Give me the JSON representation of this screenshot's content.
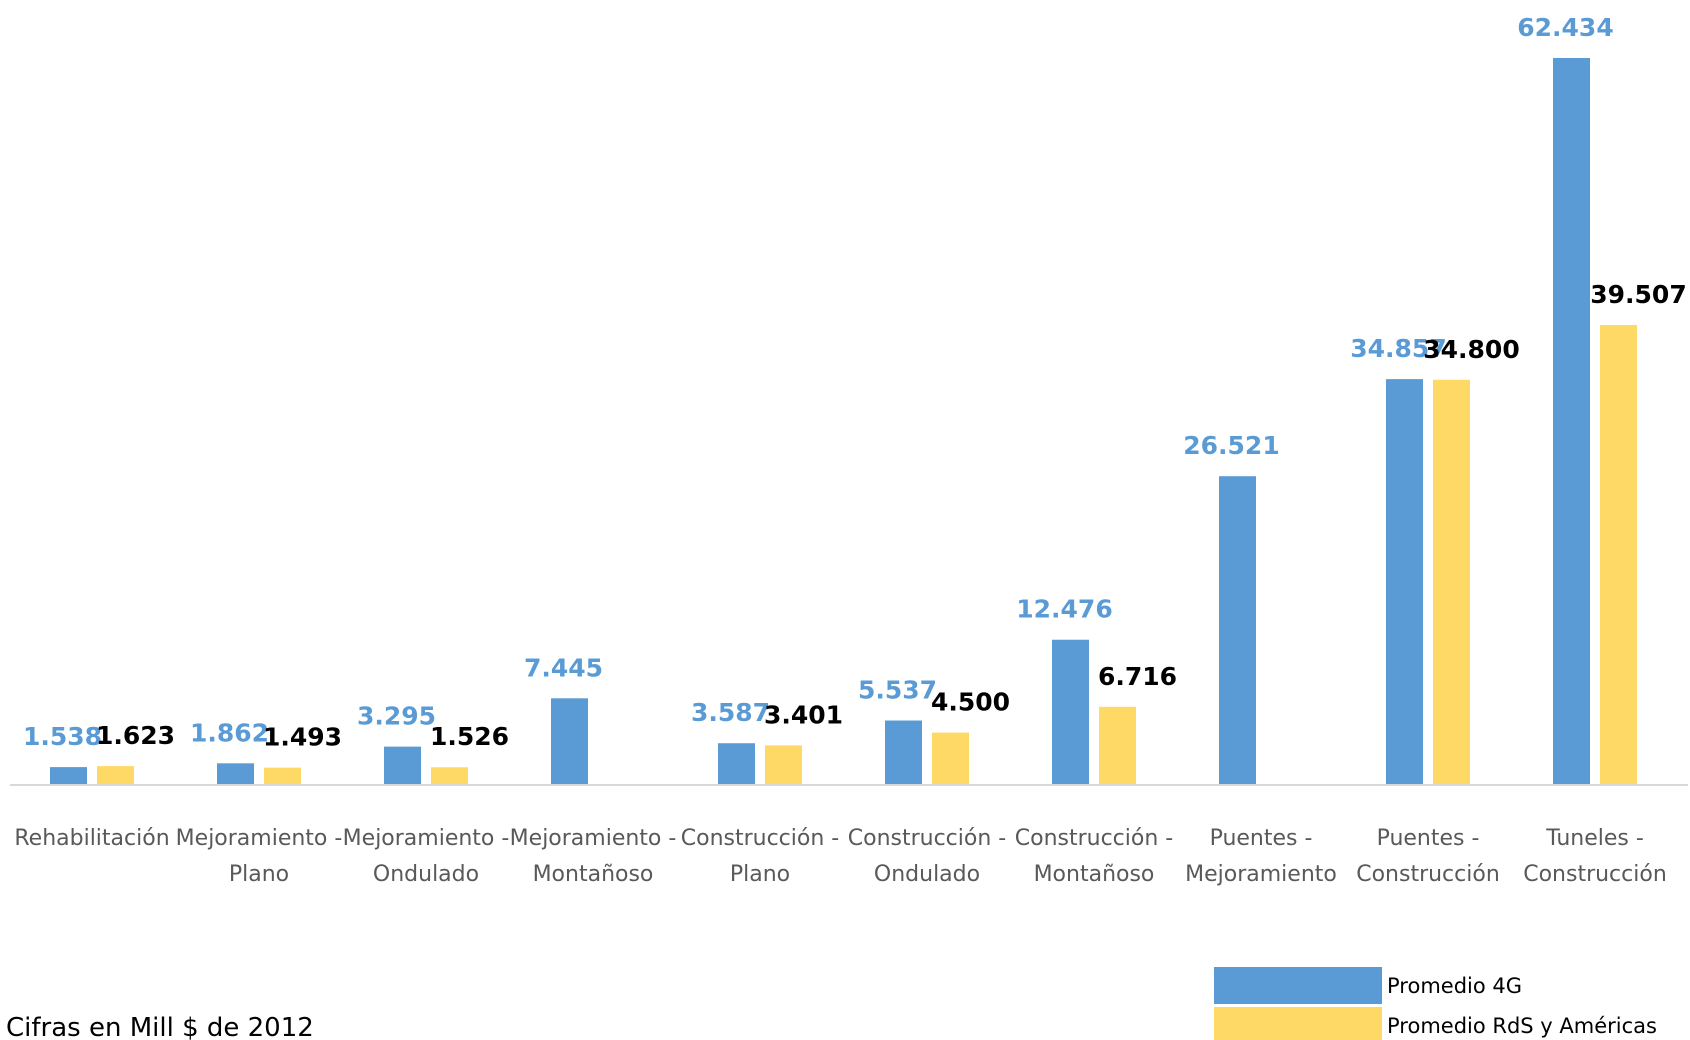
{
  "chart_data": {
    "type": "bar",
    "categories": [
      [
        "Rehabilitación"
      ],
      [
        "Mejoramiento -",
        "Plano"
      ],
      [
        "Mejoramiento -",
        "Ondulado"
      ],
      [
        "Mejoramiento -",
        "Montañoso"
      ],
      [
        "Construcción -",
        "Plano"
      ],
      [
        "Construcción -",
        "Ondulado"
      ],
      [
        "Construcción -",
        "Montañoso"
      ],
      [
        "Puentes -",
        "Mejoramiento"
      ],
      [
        "Puentes -",
        "Construcción"
      ],
      [
        "Tuneles -",
        "Construcción"
      ]
    ],
    "series": [
      {
        "name": "Promedio 4G",
        "color": "#5B9BD5",
        "label_color": "#5B9BD5",
        "values": [
          1538,
          1862,
          3295,
          7445,
          3587,
          5537,
          12476,
          26521,
          34857,
          62434
        ],
        "labels": [
          "1.538",
          "1.862",
          "3.295",
          "7.445",
          "3.587",
          "5.537",
          "12.476",
          "26.521",
          "34.857",
          "62.434"
        ]
      },
      {
        "name": "Promedio RdS y Américas",
        "color": "#FFD966",
        "label_color": "#000000",
        "values": [
          1623,
          1493,
          1526,
          null,
          3401,
          4500,
          6716,
          null,
          34800,
          39507
        ],
        "labels": [
          "1.623",
          "1.493",
          "1.526",
          null,
          "3.401",
          "4.500",
          "6.716",
          null,
          "34.800",
          "39.507"
        ]
      }
    ],
    "ylim": [
      0,
      62434
    ],
    "grid": false,
    "legend_position": "bottom-right"
  },
  "footnote": "Cifras en Mill $ de 2012"
}
